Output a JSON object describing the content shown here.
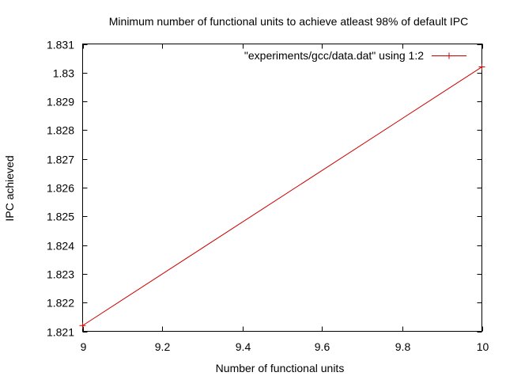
{
  "chart_data": {
    "type": "line",
    "title": "Minimum number of functional units to achieve atleast 98% of default IPC",
    "xlabel": "Number of functional units",
    "ylabel": "IPC achieved",
    "xlim": [
      9,
      10
    ],
    "ylim": [
      1.821,
      1.831
    ],
    "x_ticks": [
      "9",
      "9.2",
      "9.4",
      "9.6",
      "9.8",
      "10"
    ],
    "y_ticks": [
      "1.821",
      "1.822",
      "1.823",
      "1.824",
      "1.825",
      "1.826",
      "1.827",
      "1.828",
      "1.829",
      "1.83",
      "1.831"
    ],
    "grid": false,
    "legend_position": "top-right",
    "series": [
      {
        "name": "\"experiments/gcc/data.dat\" using 1:2",
        "color": "#cc0000",
        "marker": "plus",
        "x": [
          9,
          10
        ],
        "y": [
          1.8212,
          1.8302
        ]
      }
    ]
  }
}
